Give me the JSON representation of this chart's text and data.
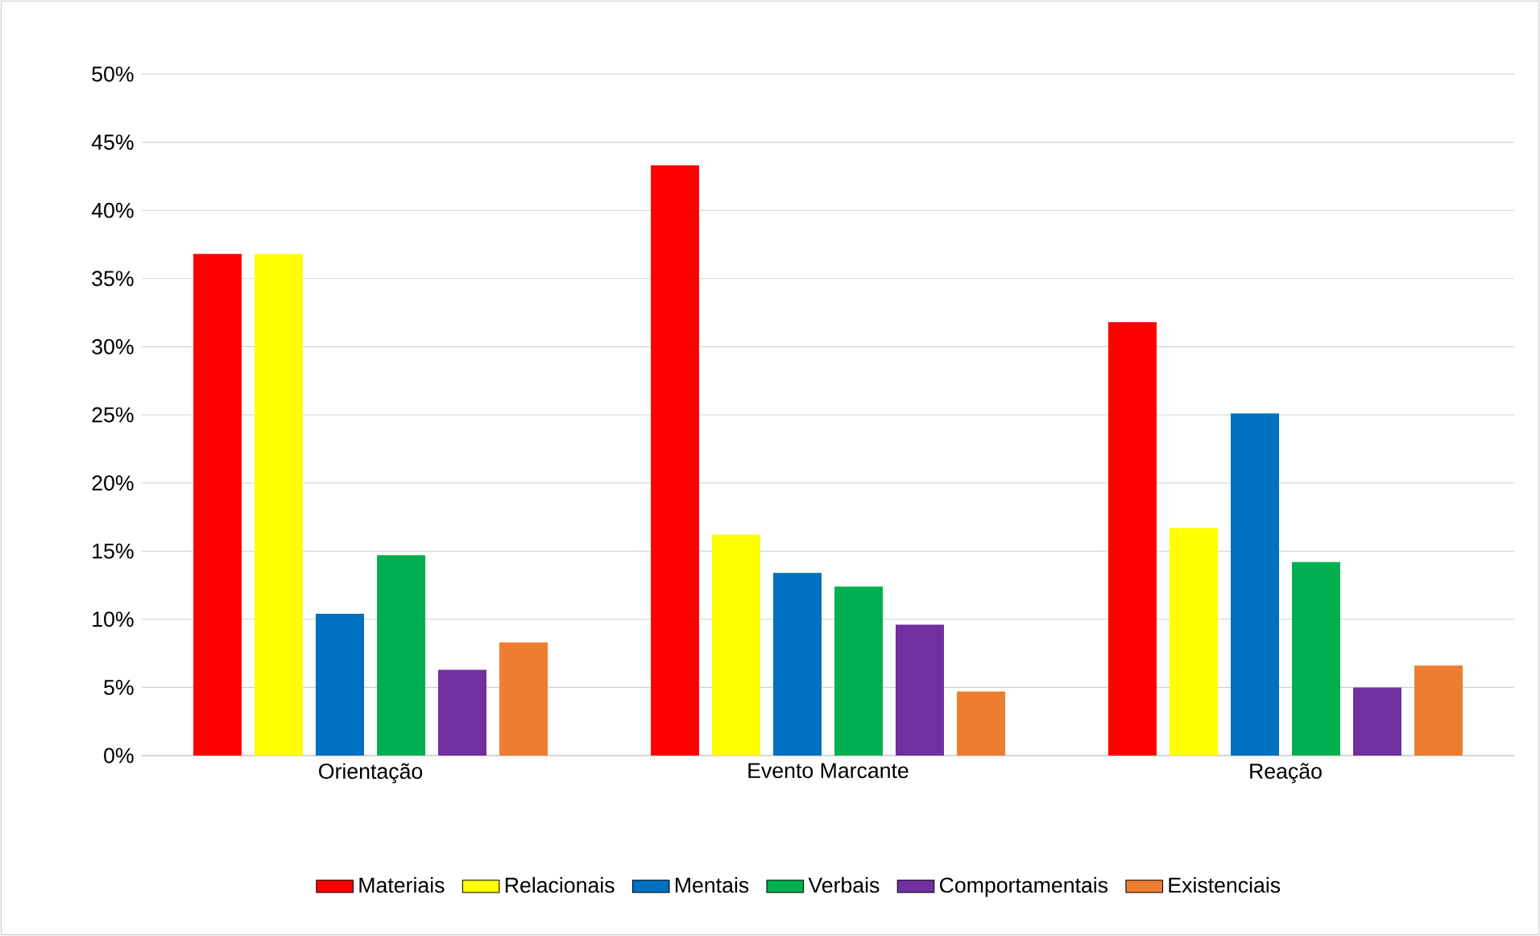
{
  "chart_data": {
    "type": "bar",
    "categories": [
      "Orientação",
      "Evento Marcante",
      "Reação"
    ],
    "series": [
      {
        "name": "Materiais",
        "color": "#ff0000",
        "values": [
          36.8,
          43.3,
          31.8
        ]
      },
      {
        "name": "Relacionais",
        "color": "#ffff00",
        "values": [
          36.8,
          16.2,
          16.7
        ]
      },
      {
        "name": "Mentais",
        "color": "#0070c0",
        "values": [
          10.4,
          13.4,
          25.1
        ]
      },
      {
        "name": "Verbais",
        "color": "#00b050",
        "values": [
          14.7,
          12.4,
          14.2
        ]
      },
      {
        "name": "Comportamentais",
        "color": "#7030a0",
        "values": [
          6.3,
          9.6,
          5.0
        ]
      },
      {
        "name": "Existenciais",
        "color": "#ed7d31",
        "values": [
          8.3,
          4.7,
          6.6
        ]
      }
    ],
    "ylim": [
      0,
      50
    ],
    "yticks": [
      {
        "value": 0,
        "label": "0%"
      },
      {
        "value": 5,
        "label": "5%"
      },
      {
        "value": 10,
        "label": "10%"
      },
      {
        "value": 15,
        "label": "15%"
      },
      {
        "value": 20,
        "label": "20%"
      },
      {
        "value": 25,
        "label": "25%"
      },
      {
        "value": 30,
        "label": "30%"
      },
      {
        "value": 35,
        "label": "35%"
      },
      {
        "value": 40,
        "label": "40%"
      },
      {
        "value": 45,
        "label": "45%"
      },
      {
        "value": 50,
        "label": "50%"
      }
    ],
    "grid": "y",
    "legend": "bottom"
  }
}
